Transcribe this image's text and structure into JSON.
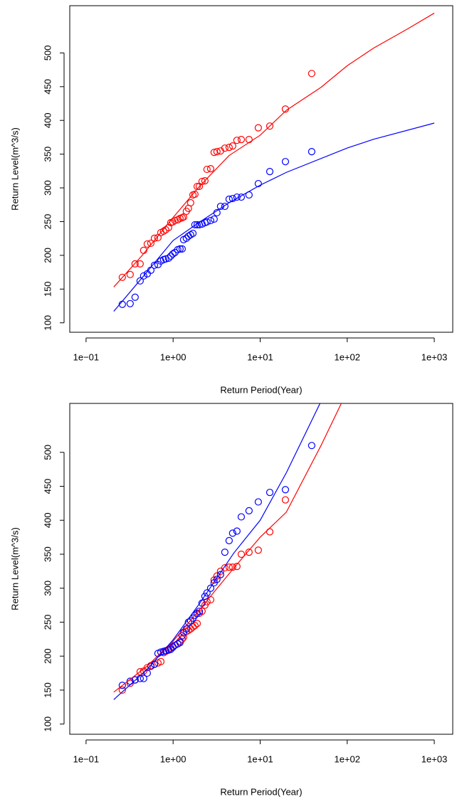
{
  "chart_data": [
    {
      "type": "scatter",
      "x_label": "Return Period(Year)",
      "y_label": "Return Level(m^3/s)",
      "xscale": "log",
      "xlim": [
        0.065,
        1630
      ],
      "ylim": [
        86,
        570
      ],
      "xticks": [
        {
          "value": 0.1,
          "label": "1e−01"
        },
        {
          "value": 1,
          "label": "1e+00"
        },
        {
          "value": 10,
          "label": "1e+01"
        },
        {
          "value": 100,
          "label": "1e+02"
        },
        {
          "value": 1000,
          "label": "1e+03"
        }
      ],
      "yticks": [
        100,
        150,
        200,
        250,
        300,
        350,
        400,
        450,
        500
      ],
      "series": [
        {
          "style": "points",
          "color": "#ff0000",
          "x": [
            0.261,
            0.321,
            0.366,
            0.418,
            0.459,
            0.505,
            0.555,
            0.61,
            0.67,
            0.723,
            0.778,
            0.824,
            0.887,
            0.94,
            0.993,
            1.05,
            1.13,
            1.2,
            1.27,
            1.32,
            1.42,
            1.5,
            1.59,
            1.69,
            1.78,
            1.89,
            2.0,
            2.15,
            2.32,
            2.45,
            2.7,
            2.96,
            3.19,
            3.51,
            3.93,
            4.4,
            4.83,
            5.41,
            6.07,
            7.45,
            9.52,
            12.9,
            19.5,
            39.1
          ],
          "values": [
            167.4,
            171.6,
            187.4,
            187.4,
            207.4,
            216.8,
            217.9,
            225.3,
            226.3,
            233.7,
            235.8,
            237.9,
            241.1,
            248.4,
            249.5,
            251.6,
            252.6,
            254.7,
            255.8,
            256.8,
            265.3,
            269.5,
            277.9,
            289.5,
            290.5,
            302.1,
            302.1,
            309.5,
            310.5,
            327.4,
            328.4,
            352.6,
            353.7,
            354.7,
            358.9,
            360,
            362.1,
            370.5,
            371.6,
            371.6,
            389,
            391.6,
            416.8,
            469.5
          ]
        },
        {
          "style": "points",
          "color": "#0000ff",
          "x": [
            0.261,
            0.321,
            0.366,
            0.418,
            0.459,
            0.505,
            0.555,
            0.61,
            0.67,
            0.723,
            0.778,
            0.824,
            0.887,
            0.94,
            0.993,
            1.05,
            1.13,
            1.2,
            1.27,
            1.32,
            1.42,
            1.5,
            1.59,
            1.69,
            1.78,
            1.89,
            2.0,
            2.15,
            2.32,
            2.45,
            2.7,
            2.96,
            3.19,
            3.51,
            3.93,
            4.4,
            4.83,
            5.41,
            6.07,
            7.45,
            9.52,
            12.9,
            19.5,
            39.1
          ],
          "values": [
            127.4,
            128.4,
            137.9,
            162.1,
            169.5,
            172.6,
            177.9,
            185.3,
            186.3,
            191.6,
            193.7,
            194.7,
            195.8,
            198.9,
            202.1,
            204.2,
            208.4,
            209.5,
            209.5,
            223.2,
            225.3,
            228.4,
            230.5,
            232.6,
            245.3,
            245.3,
            245.3,
            246.3,
            248.4,
            249.5,
            251.6,
            253.7,
            263.2,
            272.6,
            272.6,
            283.2,
            284.2,
            286.3,
            286.3,
            289.5,
            306.3,
            324.2,
            338.9,
            353.7
          ]
        },
        {
          "style": "line",
          "color": "#ff0000",
          "x": [
            0.208,
            0.442,
            1,
            2,
            4.4,
            10,
            20,
            50,
            100,
            200,
            500,
            1000
          ],
          "values": [
            153,
            200,
            256,
            302,
            348,
            378,
            415,
            449,
            481,
            507,
            536,
            559
          ]
        },
        {
          "style": "line",
          "color": "#0000ff",
          "x": [
            0.208,
            0.442,
            1,
            2,
            4.4,
            10,
            20,
            100,
            200,
            1000
          ],
          "values": [
            117,
            167,
            222,
            249,
            278,
            304,
            323,
            359,
            372,
            396
          ]
        }
      ]
    },
    {
      "type": "scatter",
      "x_label": "Return Period(Year)",
      "y_label": "Return Level(m^3/s)",
      "xscale": "log",
      "xlim": [
        0.065,
        1630
      ],
      "ylim": [
        85,
        572
      ],
      "xticks": [
        {
          "value": 0.1,
          "label": "1e−01"
        },
        {
          "value": 1,
          "label": "1e+00"
        },
        {
          "value": 10,
          "label": "1e+01"
        },
        {
          "value": 100,
          "label": "1e+02"
        },
        {
          "value": 1000,
          "label": "1e+03"
        }
      ],
      "yticks": [
        100,
        150,
        200,
        250,
        300,
        350,
        400,
        450,
        500
      ],
      "series": [
        {
          "style": "points",
          "color": "#ff0000",
          "x": [
            0.261,
            0.321,
            0.366,
            0.418,
            0.459,
            0.505,
            0.555,
            0.61,
            0.67,
            0.723,
            0.778,
            0.824,
            0.887,
            0.94,
            0.993,
            1.05,
            1.13,
            1.2,
            1.27,
            1.32,
            1.42,
            1.5,
            1.59,
            1.69,
            1.78,
            1.89,
            2.0,
            2.15,
            2.32,
            2.45,
            2.7,
            2.96,
            3.19,
            3.51,
            3.93,
            4.4,
            4.83,
            5.41,
            6.07,
            7.45,
            9.52,
            12.9,
            19.5
          ],
          "values": [
            150,
            160,
            165,
            177,
            178,
            183,
            186,
            188,
            190,
            192,
            205,
            207,
            210,
            212,
            214,
            216,
            218,
            222,
            225,
            228,
            236,
            238,
            240,
            243,
            245,
            248,
            263,
            266,
            275,
            280,
            283,
            312,
            318,
            325,
            330,
            331,
            331,
            332,
            350,
            353,
            356,
            383,
            430
          ]
        },
        {
          "style": "points",
          "color": "#0000ff",
          "x": [
            0.261,
            0.321,
            0.366,
            0.418,
            0.459,
            0.505,
            0.555,
            0.61,
            0.67,
            0.723,
            0.778,
            0.824,
            0.887,
            0.94,
            0.993,
            1.05,
            1.13,
            1.2,
            1.27,
            1.32,
            1.42,
            1.5,
            1.59,
            1.69,
            1.78,
            1.89,
            2.0,
            2.15,
            2.32,
            2.45,
            2.7,
            2.96,
            3.19,
            3.51,
            3.93,
            4.4,
            4.83,
            5.41,
            6.07,
            7.45,
            9.52,
            12.9,
            19.5,
            39.1
          ],
          "values": [
            157,
            163,
            165,
            167,
            167,
            175,
            185,
            188,
            204,
            206,
            207,
            208,
            209,
            210,
            213,
            216,
            218,
            220,
            230,
            235,
            240,
            250,
            252,
            256,
            260,
            263,
            266,
            278,
            288,
            293,
            300,
            308,
            313,
            320,
            353,
            370,
            381,
            384,
            405,
            414,
            427,
            441,
            445,
            510
          ]
        },
        {
          "style": "line",
          "color": "#ff0000",
          "x": [
            0.208,
            0.5,
            1,
            2,
            5,
            10,
            20,
            50,
            100
          ],
          "values": [
            147,
            185,
            222,
            268,
            330,
            375,
            412,
            510,
            590
          ]
        },
        {
          "style": "line",
          "color": "#0000ff",
          "x": [
            0.208,
            0.5,
            1,
            2,
            5,
            10,
            20,
            50
          ],
          "values": [
            136,
            180,
            224,
            277,
            352,
            400,
            470,
            575
          ]
        }
      ]
    }
  ]
}
